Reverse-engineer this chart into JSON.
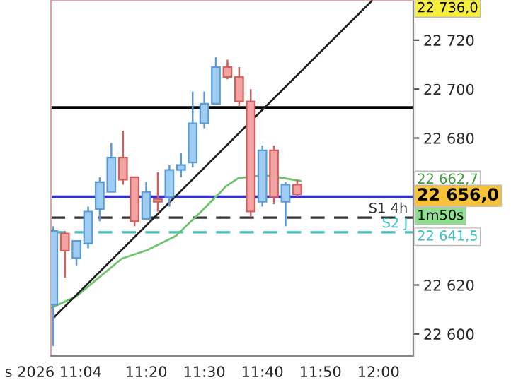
{
  "chart_data": {
    "type": "candlestick",
    "x": [
      11.0667,
      11.1,
      11.1333,
      11.1667,
      11.2,
      11.2333,
      11.2667,
      11.3,
      11.3333,
      11.3667,
      11.4,
      11.4333,
      11.4667,
      11.5,
      11.5333,
      11.5667,
      11.6,
      11.6333,
      11.6667,
      11.7,
      11.7333,
      11.7667
    ],
    "ohlc": [
      [
        22612,
        22644,
        22595,
        22642
      ],
      [
        22641,
        22642,
        22623,
        22634
      ],
      [
        22631,
        22638,
        22628,
        22638
      ],
      [
        22637,
        22652,
        22635,
        22650
      ],
      [
        22651,
        22664,
        22646,
        22662
      ],
      [
        22658,
        22678,
        22658,
        22672
      ],
      [
        22672,
        22683,
        22661,
        22663
      ],
      [
        22664,
        22664,
        22644,
        22646
      ],
      [
        22647,
        22662,
        22647,
        22658
      ],
      [
        22655,
        22666,
        22650,
        22654
      ],
      [
        22656,
        22669,
        22652,
        22667
      ],
      [
        22667,
        22674,
        22664,
        22669
      ],
      [
        22670,
        22699,
        22668,
        22686
      ],
      [
        22686,
        22699,
        22684,
        22694
      ],
      [
        22694,
        22713,
        22694,
        22709
      ],
      [
        22709,
        22712,
        22704,
        22705
      ],
      [
        22705,
        22709,
        22693,
        22695
      ],
      [
        22695,
        22700,
        22648,
        22650
      ],
      [
        22654,
        22677,
        22652,
        22675
      ],
      [
        22675,
        22677,
        22653,
        22656
      ],
      [
        22654,
        22662,
        22644,
        22661
      ],
      [
        22661,
        22663,
        22656,
        22657
      ]
    ],
    "colors": [
      "#9fcdf2",
      "#f4a3a3",
      "#9fcdf2",
      "#9fcdf2",
      "#9fcdf2",
      "#9fcdf2",
      "#f4a3a3",
      "#f4a3a3",
      "#9fcdf2",
      "#f4a3a3",
      "#9fcdf2",
      "#9fcdf2",
      "#9fcdf2",
      "#9fcdf2",
      "#9fcdf2",
      "#f4a3a3",
      "#f4a3a3",
      "#f4a3a3",
      "#9fcdf2",
      "#f4a3a3",
      "#9fcdf2",
      "#f4a3a3"
    ],
    "series": [
      {
        "type": "line",
        "color": "#6cc46c",
        "x": [
          11.06,
          11.1312,
          11.2638,
          11.3355,
          11.418,
          11.4897,
          11.5505,
          11.5613,
          11.5972,
          11.6688,
          11.7047,
          11.7763
        ],
        "values": [
          22610.6,
          22615.2,
          22630.8,
          22634.2,
          22640.0,
          22649.8,
          22658.5,
          22660.2,
          22663.6,
          22664.8,
          22664.2,
          22662.5
        ]
      },
      {
        "type": "line",
        "color": "#222222",
        "x": [
          11.0667,
          11.9806
        ],
        "values": [
          22606.5,
          22736.0
        ]
      }
    ],
    "xlim": [
      11.06,
      12.1
    ],
    "xticks": [
      {
        "value": 11.0667,
        "label": "s 2026 11:04"
      },
      {
        "value": 11.3333,
        "label": "11:20"
      },
      {
        "value": 11.5,
        "label": "11:30"
      },
      {
        "value": 11.6667,
        "label": "11:40"
      },
      {
        "value": 11.8333,
        "label": "11:50"
      },
      {
        "value": 12.0,
        "label": "12:00"
      }
    ],
    "ylim": [
      22591,
      22736.4
    ],
    "yticks": [
      {
        "value": 22600,
        "label": "22 600"
      },
      {
        "value": 22620,
        "label": "22 620"
      },
      {
        "value": 22680,
        "label": "22 680"
      },
      {
        "value": 22700,
        "label": "22 700"
      },
      {
        "value": 22720,
        "label": "22 720"
      }
    ],
    "ref_lines": [
      {
        "axis": "y",
        "value": 22692.5,
        "color": "#000000",
        "line_style": "solid"
      },
      {
        "axis": "y",
        "value": 22656.0,
        "color": "#3333cc",
        "line_style": "solid"
      },
      {
        "axis": "y",
        "value": 22647.5,
        "color": "#333333",
        "line_style": "dashed",
        "label": "S1 4h"
      },
      {
        "axis": "y",
        "value": 22641.5,
        "color": "#3cc0c0",
        "line_style": "dashed",
        "label": "S2 J"
      }
    ],
    "annotations": [
      "22 736,0",
      "22 662,7",
      "22 656,0",
      "22 641,5",
      "1m50s"
    ],
    "grid": false,
    "legend": false
  }
}
